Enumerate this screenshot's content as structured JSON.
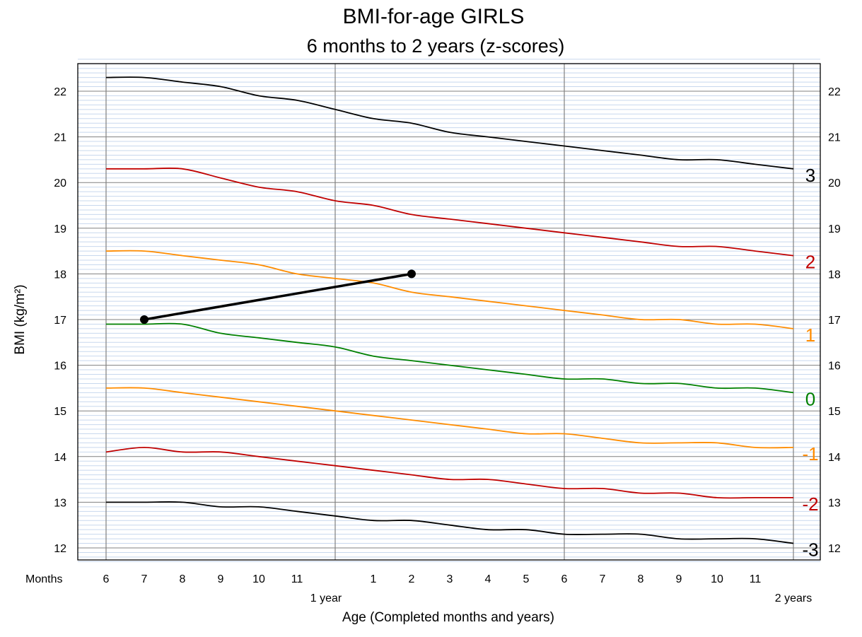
{
  "chart_data": {
    "type": "line",
    "title": "BMI-for-age  GIRLS",
    "subtitle": "6 months to 2 years (z-scores)",
    "xlabel": "Age (Completed months and years)",
    "ylabel": "BMI (kg/m²)",
    "x_units": "age in months",
    "xlim": [
      6,
      24
    ],
    "ylim": [
      11.7,
      22.7
    ],
    "y_ticks": [
      12,
      13,
      14,
      15,
      16,
      17,
      18,
      19,
      20,
      21,
      22
    ],
    "x_axis_title": "Months",
    "x_tick_labels": [
      {
        "x": 6,
        "label": "6"
      },
      {
        "x": 7,
        "label": "7"
      },
      {
        "x": 8,
        "label": "8"
      },
      {
        "x": 9,
        "label": "9"
      },
      {
        "x": 10,
        "label": "10"
      },
      {
        "x": 11,
        "label": "11"
      },
      {
        "x": 13,
        "label": "1"
      },
      {
        "x": 14,
        "label": "2"
      },
      {
        "x": 15,
        "label": "3"
      },
      {
        "x": 16,
        "label": "4"
      },
      {
        "x": 17,
        "label": "5"
      },
      {
        "x": 18,
        "label": "6"
      },
      {
        "x": 19,
        "label": "7"
      },
      {
        "x": 20,
        "label": "8"
      },
      {
        "x": 21,
        "label": "9"
      },
      {
        "x": 22,
        "label": "10"
      },
      {
        "x": 23,
        "label": "11"
      }
    ],
    "year_labels": [
      {
        "x": 12,
        "label": "1 year"
      },
      {
        "x": 24,
        "label": "2 years"
      }
    ],
    "grid": true,
    "x": [
      6,
      7,
      8,
      9,
      10,
      11,
      12,
      13,
      14,
      15,
      16,
      17,
      18,
      19,
      20,
      21,
      22,
      23,
      24
    ],
    "series": [
      {
        "name": "3",
        "color": "#000000",
        "values": [
          22.3,
          22.3,
          22.2,
          22.1,
          21.9,
          21.8,
          21.6,
          21.4,
          21.3,
          21.1,
          21.0,
          20.9,
          20.8,
          20.7,
          20.6,
          20.5,
          20.5,
          20.4,
          20.3
        ]
      },
      {
        "name": "2",
        "color": "#c00000",
        "values": [
          20.3,
          20.3,
          20.3,
          20.1,
          19.9,
          19.8,
          19.6,
          19.5,
          19.3,
          19.2,
          19.1,
          19.0,
          18.9,
          18.8,
          18.7,
          18.6,
          18.6,
          18.5,
          18.4
        ]
      },
      {
        "name": "1",
        "color": "#ff8c00",
        "values": [
          18.5,
          18.5,
          18.4,
          18.3,
          18.2,
          18.0,
          17.9,
          17.8,
          17.6,
          17.5,
          17.4,
          17.3,
          17.2,
          17.1,
          17.0,
          17.0,
          16.9,
          16.9,
          16.8
        ]
      },
      {
        "name": "0",
        "color": "#008000",
        "values": [
          16.9,
          16.9,
          16.9,
          16.7,
          16.6,
          16.5,
          16.4,
          16.2,
          16.1,
          16.0,
          15.9,
          15.8,
          15.7,
          15.7,
          15.6,
          15.6,
          15.5,
          15.5,
          15.4
        ]
      },
      {
        "name": "-1",
        "color": "#ff8c00",
        "values": [
          15.5,
          15.5,
          15.4,
          15.3,
          15.2,
          15.1,
          15.0,
          14.9,
          14.8,
          14.7,
          14.6,
          14.5,
          14.5,
          14.4,
          14.3,
          14.3,
          14.3,
          14.2,
          14.2
        ]
      },
      {
        "name": "-2",
        "color": "#c00000",
        "values": [
          14.1,
          14.2,
          14.1,
          14.1,
          14.0,
          13.9,
          13.8,
          13.7,
          13.6,
          13.5,
          13.5,
          13.4,
          13.3,
          13.3,
          13.2,
          13.2,
          13.1,
          13.1,
          13.1
        ]
      },
      {
        "name": "-3",
        "color": "#000000",
        "values": [
          13.0,
          13.0,
          13.0,
          12.9,
          12.9,
          12.8,
          12.7,
          12.6,
          12.6,
          12.5,
          12.4,
          12.4,
          12.3,
          12.3,
          12.3,
          12.2,
          12.2,
          12.2,
          12.1
        ]
      }
    ],
    "measurements": [
      {
        "x": 7,
        "y": 17.0
      },
      {
        "x": 14,
        "y": 18.0
      }
    ],
    "colors": {
      "minor_grid": "#c8d8ee",
      "major_grid": "#808080",
      "measurement": "#000000"
    }
  }
}
